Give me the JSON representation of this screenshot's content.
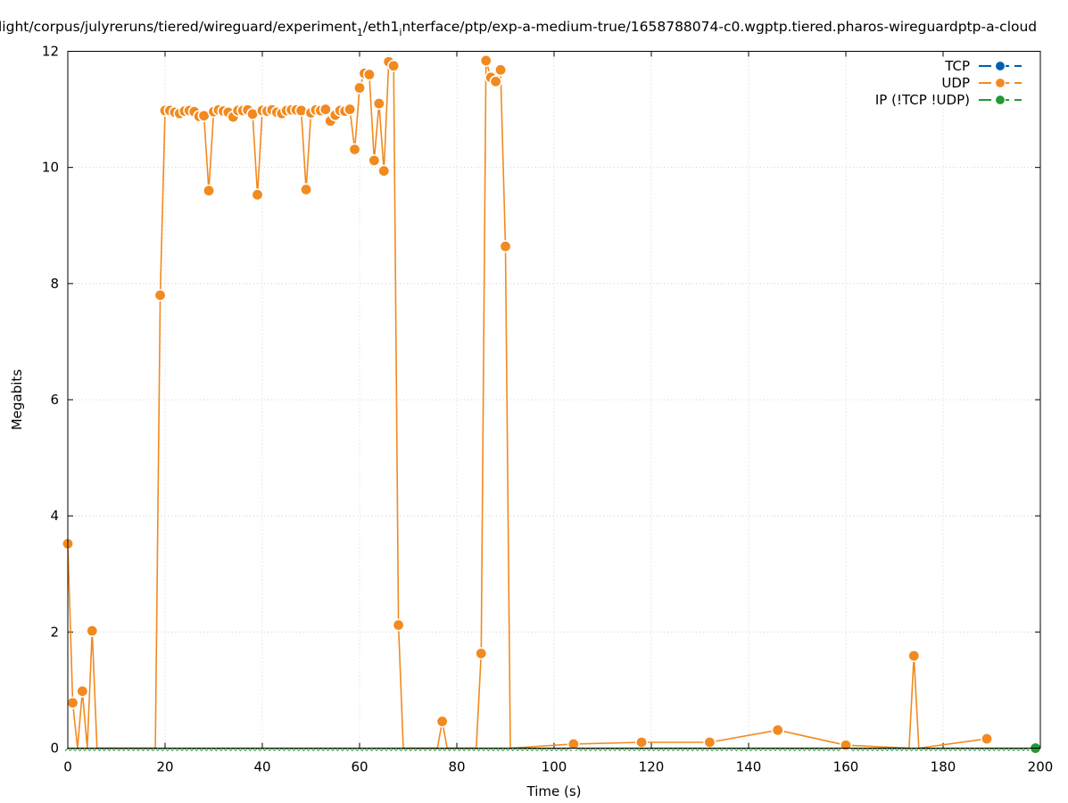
{
  "chart_data": {
    "type": "line",
    "title_prefix": "light/corpus/julyreruns/tiered/wireguard/experiment",
    "title_sub1": "1",
    "title_mid": "/eth1",
    "title_sub2": "i",
    "title_suffix": "nterface/ptp/exp-a-medium-true/1658788074-c0.wgptp.tiered.pharos-wireguardptp-a-cloud",
    "xlabel": "Time (s)",
    "ylabel": "Megabits",
    "xlim": [
      0,
      200
    ],
    "ylim": [
      0,
      12
    ],
    "xticks": [
      "0",
      "20",
      "40",
      "60",
      "80",
      "100",
      "120",
      "140",
      "160",
      "180",
      "200"
    ],
    "yticks": [
      "0",
      "2",
      "4",
      "6",
      "8",
      "10",
      "12"
    ],
    "grid": true,
    "legend_position": "top-right",
    "series": [
      {
        "name": "TCP",
        "color": "#0060ad",
        "points": []
      },
      {
        "name": "UDP",
        "color": "#f28a1f",
        "points": [
          [
            0,
            3.52
          ],
          [
            1,
            0.78
          ],
          [
            2,
            0.0
          ],
          [
            3,
            0.98
          ],
          [
            4,
            0.0
          ],
          [
            5,
            2.02
          ],
          [
            6,
            0.0
          ],
          [
            18,
            0.0
          ],
          [
            19,
            7.8
          ],
          [
            20,
            10.98
          ],
          [
            21,
            10.98
          ],
          [
            22,
            10.95
          ],
          [
            23,
            10.93
          ],
          [
            24,
            10.97
          ],
          [
            25,
            10.98
          ],
          [
            26,
            10.96
          ],
          [
            27,
            10.88
          ],
          [
            28,
            10.89
          ],
          [
            29,
            9.6
          ],
          [
            30,
            10.96
          ],
          [
            31,
            10.99
          ],
          [
            32,
            10.97
          ],
          [
            33,
            10.95
          ],
          [
            34,
            10.87
          ],
          [
            35,
            10.98
          ],
          [
            36,
            10.98
          ],
          [
            37,
            10.99
          ],
          [
            38,
            10.92
          ],
          [
            39,
            9.53
          ],
          [
            40,
            10.98
          ],
          [
            41,
            10.97
          ],
          [
            42,
            10.99
          ],
          [
            43,
            10.95
          ],
          [
            44,
            10.93
          ],
          [
            45,
            10.98
          ],
          [
            46,
            10.99
          ],
          [
            47,
            10.99
          ],
          [
            48,
            10.98
          ],
          [
            49,
            9.62
          ],
          [
            50,
            10.94
          ],
          [
            51,
            10.99
          ],
          [
            52,
            10.98
          ],
          [
            53,
            11.0
          ],
          [
            54,
            10.8
          ],
          [
            55,
            10.9
          ],
          [
            56,
            10.98
          ],
          [
            57,
            10.97
          ],
          [
            58,
            11.0
          ],
          [
            59,
            10.31
          ],
          [
            60,
            11.37
          ],
          [
            61,
            11.62
          ],
          [
            62,
            11.6
          ],
          [
            63,
            10.12
          ],
          [
            64,
            11.1
          ],
          [
            65,
            9.94
          ],
          [
            66,
            11.82
          ],
          [
            67,
            11.75
          ],
          [
            68,
            2.12
          ],
          [
            69,
            0.0
          ],
          [
            76,
            0.0
          ],
          [
            77,
            0.46
          ],
          [
            78,
            0.0
          ],
          [
            84,
            0.0
          ],
          [
            85,
            1.63
          ],
          [
            86,
            11.84
          ],
          [
            87,
            11.55
          ],
          [
            88,
            11.48
          ],
          [
            89,
            11.68
          ],
          [
            90,
            8.64
          ],
          [
            91,
            0.0
          ],
          [
            104,
            0.07
          ],
          [
            118,
            0.1
          ],
          [
            132,
            0.1
          ],
          [
            146,
            0.31
          ],
          [
            160,
            0.05
          ],
          [
            173,
            0.0
          ],
          [
            174,
            1.59
          ],
          [
            175,
            0.0
          ],
          [
            189,
            0.16
          ]
        ]
      },
      {
        "name": "IP (!TCP  !UDP)",
        "color": "#229933",
        "points": [
          [
            199,
            0.0
          ]
        ]
      }
    ]
  }
}
